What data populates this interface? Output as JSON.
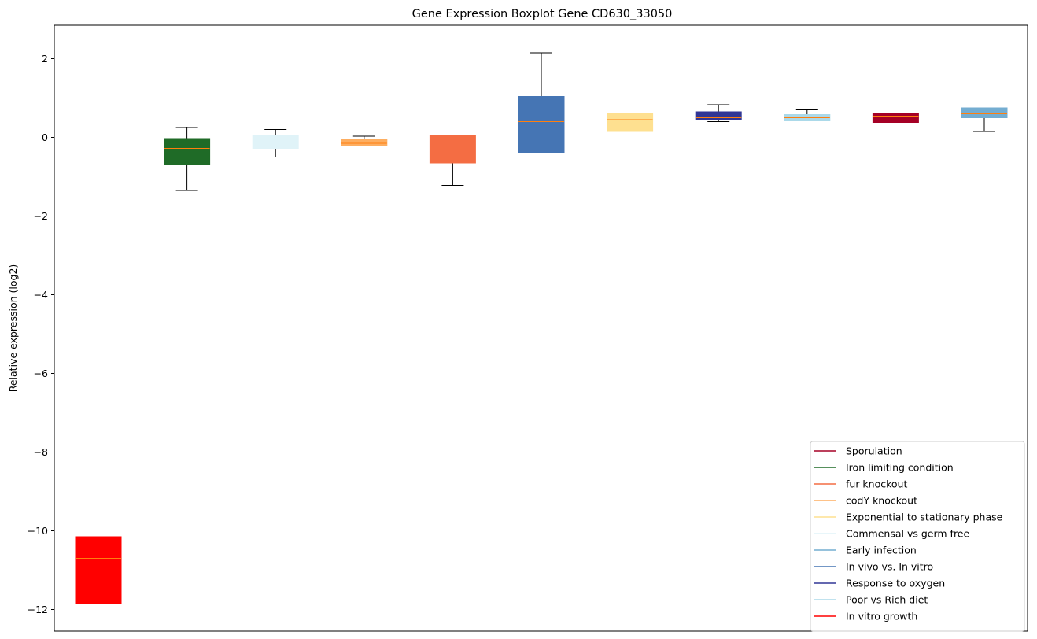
{
  "chart_data": {
    "type": "boxplot",
    "title": "Gene Expression Boxplot Gene CD630_33050",
    "xlabel": "",
    "ylabel": "Relative expression (log2)",
    "ylim": [
      -12.55,
      2.85
    ],
    "yticks": [
      2,
      0,
      -2,
      -4,
      -6,
      -8,
      -10,
      -12
    ],
    "ytick_labels": [
      "2",
      "0",
      "−2",
      "−4",
      "−6",
      "−8",
      "−10",
      "−12"
    ],
    "grid": false,
    "legend_position": "lower-right",
    "median_color": "#ff7f0e",
    "boxes": [
      {
        "whisker_low": -11.85,
        "q1": -11.85,
        "median": -10.7,
        "q3": -10.15,
        "whisker_high": -10.15,
        "color": "#ff0000"
      },
      {
        "whisker_low": -1.35,
        "q1": -0.7,
        "median": -0.28,
        "q3": -0.03,
        "whisker_high": 0.25,
        "color": "#1f6b27"
      },
      {
        "whisker_low": -0.5,
        "q1": -0.28,
        "median": -0.22,
        "q3": 0.05,
        "whisker_high": 0.2,
        "color": "#e0f3f8"
      },
      {
        "whisker_low": -0.2,
        "q1": -0.2,
        "median": -0.15,
        "q3": -0.05,
        "whisker_high": 0.03,
        "color": "#fdae61"
      },
      {
        "whisker_low": -1.22,
        "q1": -0.65,
        "median": 0.06,
        "q3": 0.06,
        "whisker_high": 0.06,
        "color": "#f46d43"
      },
      {
        "whisker_low": -0.38,
        "q1": -0.38,
        "median": 0.4,
        "q3": 1.04,
        "whisker_high": 2.15,
        "color": "#4575b4"
      },
      {
        "whisker_low": 0.15,
        "q1": 0.15,
        "median": 0.45,
        "q3": 0.6,
        "whisker_high": 0.6,
        "color": "#fee090"
      },
      {
        "whisker_low": 0.4,
        "q1": 0.45,
        "median": 0.5,
        "q3": 0.65,
        "whisker_high": 0.83,
        "color": "#313695"
      },
      {
        "whisker_low": 0.42,
        "q1": 0.42,
        "median": 0.5,
        "q3": 0.58,
        "whisker_high": 0.7,
        "color": "#abd9e9"
      },
      {
        "whisker_low": 0.38,
        "q1": 0.38,
        "median": 0.52,
        "q3": 0.6,
        "whisker_high": 0.6,
        "color": "#a50026"
      },
      {
        "whisker_low": 0.15,
        "q1": 0.5,
        "median": 0.6,
        "q3": 0.75,
        "whisker_high": 0.75,
        "color": "#74add1"
      }
    ],
    "legend": [
      {
        "label": "Sporulation",
        "color": "#a50026"
      },
      {
        "label": "Iron limiting condition",
        "color": "#1f6b27"
      },
      {
        "label": "fur knockout",
        "color": "#f46d43"
      },
      {
        "label": "codY knockout",
        "color": "#fdae61"
      },
      {
        "label": "Exponential to stationary phase",
        "color": "#fee090"
      },
      {
        "label": "Commensal vs germ free",
        "color": "#e0f3f8"
      },
      {
        "label": "Early infection",
        "color": "#74add1"
      },
      {
        "label": "In vivo vs. In vitro",
        "color": "#4575b4"
      },
      {
        "label": "Response to oxygen",
        "color": "#313695"
      },
      {
        "label": "Poor vs Rich diet",
        "color": "#abd9e9"
      },
      {
        "label": "In vitro growth",
        "color": "#ff0000"
      }
    ]
  }
}
